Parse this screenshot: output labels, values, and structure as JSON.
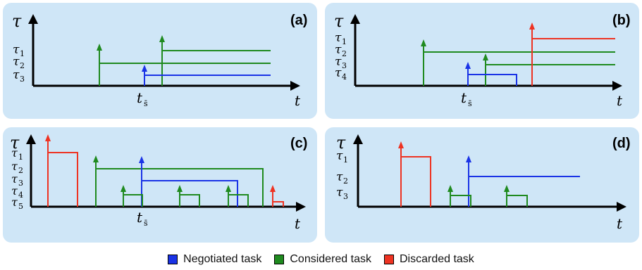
{
  "colors": {
    "negotiated": "#1a33e6",
    "considered": "#1f8a1f",
    "discarded": "#ee3322",
    "panel_bg": "#cfe6f7"
  },
  "symbols": {
    "tau": "τ",
    "t": "t",
    "ts": "t",
    "ts_sub": "s̄"
  },
  "panels": {
    "a": {
      "label": "(a)",
      "levels": [
        "1",
        "2",
        "3"
      ]
    },
    "b": {
      "label": "(b)",
      "levels": [
        "1",
        "2",
        "3",
        "4"
      ]
    },
    "c": {
      "label": "(c)",
      "levels": [
        "1",
        "2",
        "3",
        "4",
        "5"
      ]
    },
    "d": {
      "label": "(d)",
      "levels": [
        "1",
        "2",
        "3"
      ]
    }
  },
  "legend": [
    {
      "label": "Negotiated task",
      "color": "negotiated"
    },
    {
      "label": "Considered task",
      "color": "considered"
    },
    {
      "label": "Discarded task",
      "color": "discarded"
    }
  ]
}
